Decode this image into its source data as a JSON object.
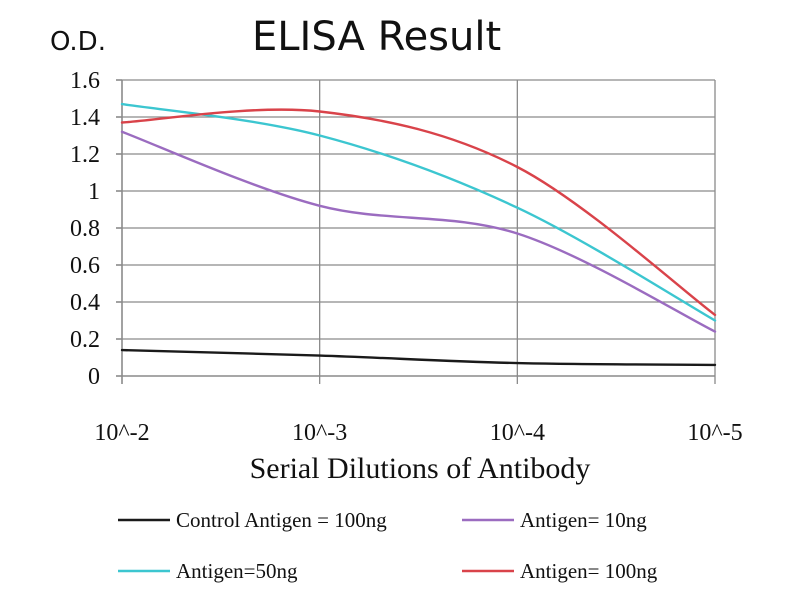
{
  "chart_data": {
    "type": "line",
    "title": "ELISA Result",
    "ylabel": "O.D.",
    "xlabel": "Serial Dilutions of Antibody",
    "x_scale": "log",
    "x_tick_labels": [
      "10^-2",
      "10^-3",
      "10^-4",
      "10^-5"
    ],
    "x": [
      0.01,
      0.001,
      0.0001,
      1e-05
    ],
    "xlim": [
      0.01,
      1e-05
    ],
    "ylim": [
      0,
      1.6
    ],
    "y_ticks": [
      0,
      0.2,
      0.4,
      0.6,
      0.8,
      1,
      1.2,
      1.4,
      1.6
    ],
    "y_tick_labels": [
      "0",
      "0.2",
      "0.4",
      "0.6",
      "0.8",
      "1",
      "1.2",
      "1.4",
      "1.6"
    ],
    "grid": true,
    "legend_position": "bottom",
    "series": [
      {
        "name": "Control Antigen = 100ng",
        "color": "#1a1a1a",
        "x": [
          0.01,
          0.001,
          0.0001,
          1e-05
        ],
        "values": [
          0.14,
          0.11,
          0.07,
          0.06
        ]
      },
      {
        "name": "Antigen= 10ng",
        "color": "#9b6cc0",
        "x": [
          0.01,
          0.001,
          0.0001,
          1e-05
        ],
        "values": [
          1.32,
          0.92,
          0.77,
          0.24
        ]
      },
      {
        "name": "Antigen=50ng",
        "color": "#3cc6d0",
        "x": [
          0.01,
          0.001,
          0.0001,
          1e-05
        ],
        "values": [
          1.47,
          1.3,
          0.91,
          0.3
        ]
      },
      {
        "name": "Antigen= 100ng",
        "color": "#d9434a",
        "x": [
          0.01,
          0.001,
          0.0001,
          1e-05
        ],
        "values": [
          1.37,
          1.43,
          1.13,
          0.33
        ]
      }
    ]
  }
}
